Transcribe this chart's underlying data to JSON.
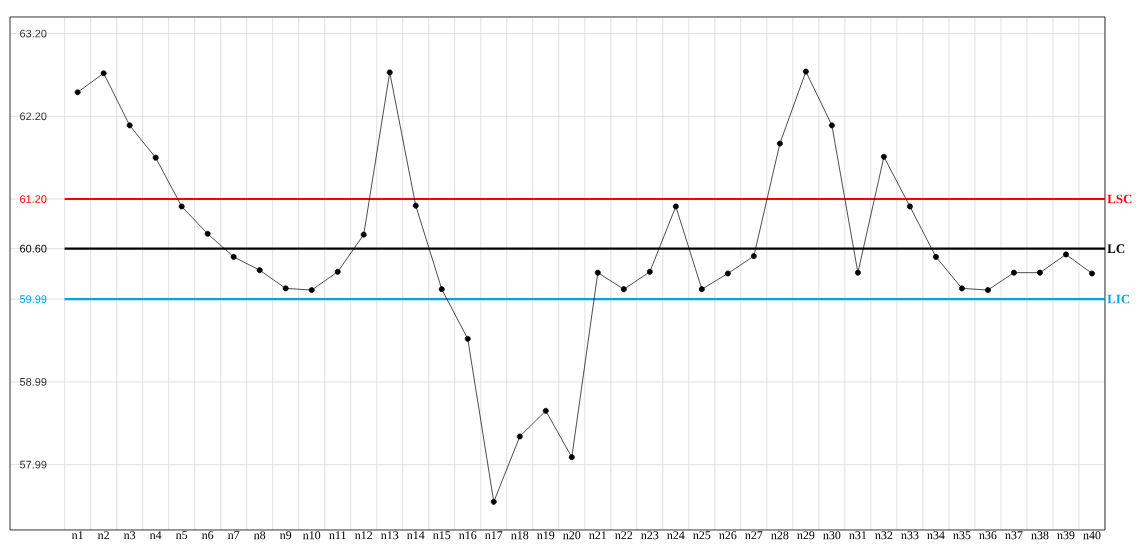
{
  "chart_data": {
    "type": "line",
    "categories": [
      "n1",
      "n2",
      "n3",
      "n4",
      "n5",
      "n6",
      "n7",
      "n8",
      "n9",
      "n10",
      "n11",
      "n12",
      "n13",
      "n14",
      "n15",
      "n16",
      "n17",
      "n18",
      "n19",
      "n20",
      "n21",
      "n22",
      "n23",
      "n24",
      "n25",
      "n26",
      "n27",
      "n28",
      "n29",
      "n30",
      "n31",
      "n32",
      "n33",
      "n34",
      "n35",
      "n36",
      "n37",
      "n38",
      "n39",
      "n40"
    ],
    "values": [
      62.49,
      62.72,
      62.09,
      61.7,
      61.11,
      60.78,
      60.5,
      60.34,
      60.12,
      60.1,
      60.32,
      60.77,
      62.73,
      61.12,
      60.11,
      59.51,
      57.54,
      58.33,
      58.64,
      58.08,
      60.31,
      60.11,
      60.32,
      61.11,
      60.11,
      60.3,
      60.51,
      61.87,
      62.74,
      62.09,
      60.31,
      61.71,
      61.11,
      60.5,
      60.12,
      60.1,
      60.31,
      60.31,
      60.53,
      60.3
    ],
    "color": "#000000",
    "marker": "circle",
    "line_style": "solid",
    "ylim": [
      57.2,
      63.4
    ],
    "yticks": [
      {
        "value": 57.99,
        "label": "57.99"
      },
      {
        "value": 58.99,
        "label": "58.99"
      },
      {
        "value": 59.99,
        "label": "59.99"
      },
      {
        "value": 60.6,
        "label": "60.60"
      },
      {
        "value": 61.2,
        "label": "61.20"
      },
      {
        "value": 62.2,
        "label": "62.20"
      },
      {
        "value": 63.2,
        "label": "63.20"
      }
    ],
    "grid": true,
    "ref_lines": [
      {
        "axis": "y",
        "value": 61.2,
        "label": "LSC",
        "color": "#ff0000"
      },
      {
        "axis": "y",
        "value": 60.6,
        "label": "LC",
        "color": "#000000"
      },
      {
        "axis": "y",
        "value": 59.99,
        "label": "LIC",
        "color": "#00a2e8"
      }
    ]
  }
}
